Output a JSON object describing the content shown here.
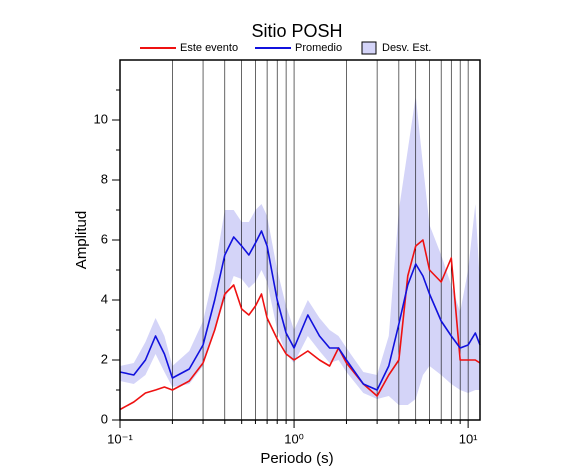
{
  "chart_data": {
    "type": "line",
    "title": "Sitio POSH",
    "xlabel": "Periodo (s)",
    "ylabel": "Amplitud",
    "xscale": "log",
    "xlim": [
      0.1,
      11.7
    ],
    "ylim": [
      0,
      12
    ],
    "xticks": [
      {
        "value": 0.1,
        "label": "10⁻¹"
      },
      {
        "value": 1,
        "label": "10⁰"
      },
      {
        "value": 10,
        "label": "10¹"
      }
    ],
    "xminorticks": [
      0.2,
      0.3,
      0.4,
      0.5,
      0.6,
      0.7,
      0.8,
      0.9,
      2,
      3,
      4,
      5,
      6,
      7,
      8,
      9
    ],
    "yticks": [
      0,
      2,
      4,
      6,
      8,
      10
    ],
    "yminorticks": [
      1,
      3,
      5,
      7,
      9,
      11
    ],
    "grid": true,
    "x": [
      0.1,
      0.12,
      0.14,
      0.16,
      0.18,
      0.2,
      0.25,
      0.3,
      0.35,
      0.4,
      0.45,
      0.5,
      0.55,
      0.6,
      0.65,
      0.7,
      0.8,
      0.9,
      1.0,
      1.2,
      1.4,
      1.6,
      1.8,
      2.0,
      2.5,
      3.0,
      3.5,
      4.0,
      4.5,
      5.0,
      5.5,
      6.0,
      7.0,
      8.0,
      9.0,
      10,
      11,
      11.7
    ],
    "band": {
      "name": "Desv. Est.",
      "color": "#d4d4f8",
      "upper": [
        1.8,
        1.9,
        2.6,
        3.4,
        2.8,
        1.8,
        2.3,
        3.3,
        5.0,
        7.0,
        7.0,
        6.6,
        6.6,
        7.0,
        7.2,
        6.8,
        5.0,
        3.8,
        3.0,
        4.0,
        3.4,
        3.0,
        2.8,
        2.4,
        1.6,
        1.5,
        2.8,
        7.0,
        9.0,
        10.8,
        8.5,
        6.5,
        5.5,
        4.5,
        3.6,
        5.0,
        7.2,
        4.5
      ],
      "lower": [
        1.3,
        1.2,
        1.5,
        2.2,
        1.6,
        1.1,
        1.2,
        1.8,
        3.0,
        4.0,
        4.8,
        4.7,
        4.4,
        4.6,
        5.0,
        4.6,
        3.0,
        2.2,
        1.9,
        2.8,
        2.3,
        1.9,
        2.0,
        1.6,
        0.9,
        0.7,
        0.8,
        0.5,
        0.5,
        0.7,
        1.5,
        1.8,
        1.5,
        1.2,
        1.0,
        0.9,
        1.0,
        1.0
      ]
    },
    "series": [
      {
        "name": "Este evento",
        "color": "#ee1111",
        "values": [
          0.35,
          0.6,
          0.9,
          1.0,
          1.1,
          1.0,
          1.3,
          1.9,
          3.0,
          4.2,
          4.5,
          3.7,
          3.5,
          3.8,
          4.2,
          3.4,
          2.7,
          2.2,
          2.0,
          2.3,
          2.0,
          1.8,
          2.4,
          1.9,
          1.2,
          0.8,
          1.5,
          2.0,
          4.8,
          5.8,
          6.0,
          5.0,
          4.6,
          5.4,
          2.0,
          2.0,
          2.0,
          1.9
        ]
      },
      {
        "name": "Promedio",
        "color": "#1111dd",
        "values": [
          1.6,
          1.5,
          2.0,
          2.8,
          2.2,
          1.4,
          1.7,
          2.5,
          4.0,
          5.5,
          6.1,
          5.8,
          5.5,
          5.9,
          6.3,
          5.8,
          4.0,
          2.9,
          2.4,
          3.5,
          2.8,
          2.4,
          2.4,
          2.0,
          1.2,
          1.0,
          1.8,
          3.2,
          4.5,
          5.2,
          4.8,
          4.2,
          3.3,
          2.8,
          2.4,
          2.5,
          2.9,
          2.5
        ]
      }
    ]
  }
}
